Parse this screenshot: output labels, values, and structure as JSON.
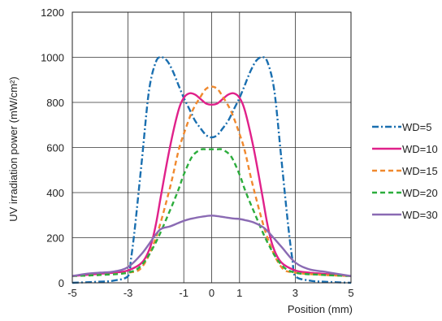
{
  "chart_data": {
    "type": "line",
    "title": "",
    "xlabel": "Position (mm)",
    "ylabel": "UV irradiation power (mW/cm²)",
    "xlim": [
      -5,
      5
    ],
    "ylim": [
      0,
      1200
    ],
    "xticks": [
      -5,
      -3,
      -1,
      0,
      1,
      3,
      5
    ],
    "xtick_labels": [
      "-5",
      "-3",
      "-1",
      "0",
      "1",
      "3",
      "5"
    ],
    "yticks": [
      0,
      200,
      400,
      600,
      800,
      1000,
      1200
    ],
    "ytick_labels": [
      "0",
      "200",
      "400",
      "600",
      "800",
      "1000",
      "1200"
    ],
    "grid": true,
    "legend_position": "right",
    "series": [
      {
        "name": "WD=5",
        "color": "#1a6fb0",
        "dash": "dash-dot",
        "x": [
          -5,
          -4,
          -3.5,
          -3.0,
          -2.9,
          -2.75,
          -2.5,
          -2.25,
          -2.0,
          -1.8,
          -1.6,
          -1.4,
          -1.2,
          -1.0,
          -0.8,
          -0.6,
          -0.4,
          -0.2,
          0,
          0.2,
          0.4,
          0.6,
          0.8,
          1.0,
          1.2,
          1.4,
          1.6,
          1.8,
          2.0,
          2.25,
          2.5,
          2.75,
          2.9,
          3.0,
          3.5,
          4,
          5
        ],
        "y": [
          0,
          5,
          10,
          30,
          100,
          250,
          550,
          850,
          980,
          1000,
          985,
          940,
          880,
          820,
          770,
          720,
          685,
          655,
          645,
          655,
          685,
          720,
          770,
          820,
          880,
          940,
          985,
          1000,
          980,
          850,
          550,
          250,
          100,
          30,
          10,
          5,
          0
        ]
      },
      {
        "name": "WD=10",
        "color": "#e0218a",
        "dash": "solid",
        "x": [
          -5,
          -4,
          -3.5,
          -3.0,
          -2.5,
          -2.2,
          -2.0,
          -1.8,
          -1.5,
          -1.2,
          -1.0,
          -0.8,
          -0.6,
          -0.4,
          -0.2,
          0,
          0.2,
          0.4,
          0.6,
          0.8,
          1.0,
          1.2,
          1.5,
          1.8,
          2.0,
          2.2,
          2.5,
          3.0,
          3.5,
          4,
          5
        ],
        "y": [
          30,
          40,
          45,
          55,
          90,
          160,
          260,
          400,
          600,
          760,
          820,
          840,
          835,
          815,
          795,
          790,
          795,
          815,
          835,
          840,
          820,
          760,
          600,
          400,
          260,
          160,
          90,
          55,
          45,
          40,
          30
        ]
      },
      {
        "name": "WD=15",
        "color": "#f0892e",
        "dash": "dash",
        "x": [
          -5,
          -4,
          -3.0,
          -2.5,
          -2.0,
          -1.5,
          -1.2,
          -1.0,
          -0.7,
          -0.4,
          -0.2,
          0,
          0.2,
          0.4,
          0.7,
          1.0,
          1.2,
          1.5,
          2.0,
          2.5,
          3.0,
          4,
          5
        ],
        "y": [
          30,
          35,
          45,
          70,
          200,
          420,
          580,
          660,
          760,
          825,
          860,
          870,
          860,
          825,
          760,
          660,
          580,
          420,
          200,
          70,
          45,
          35,
          30
        ]
      },
      {
        "name": "WD=20",
        "color": "#2cad3c",
        "dash": "dash",
        "x": [
          -5,
          -4,
          -3.0,
          -2.5,
          -2.0,
          -1.5,
          -1.2,
          -1.0,
          -0.7,
          -0.4,
          -0.2,
          0,
          0.2,
          0.4,
          0.7,
          1.0,
          1.2,
          1.5,
          2.0,
          2.5,
          3.0,
          4,
          5
        ],
        "y": [
          30,
          35,
          45,
          80,
          180,
          320,
          410,
          480,
          560,
          590,
          592,
          592,
          592,
          590,
          560,
          480,
          410,
          320,
          180,
          80,
          45,
          35,
          30
        ]
      },
      {
        "name": "WD=30",
        "color": "#8a6ab3",
        "dash": "solid",
        "x": [
          -5,
          -4.5,
          -4,
          -3.5,
          -3.0,
          -2.5,
          -2.0,
          -1.8,
          -1.5,
          -1.2,
          -1.0,
          -0.8,
          -0.5,
          -0.2,
          0,
          0.2,
          0.5,
          0.8,
          1.0,
          1.2,
          1.5,
          1.8,
          2.0,
          2.5,
          3.0,
          3.5,
          4,
          4.5,
          5
        ],
        "y": [
          30,
          40,
          45,
          50,
          70,
          130,
          215,
          240,
          250,
          265,
          275,
          282,
          290,
          296,
          298,
          296,
          290,
          285,
          283,
          278,
          268,
          250,
          230,
          160,
          90,
          60,
          50,
          40,
          30
        ]
      }
    ]
  }
}
